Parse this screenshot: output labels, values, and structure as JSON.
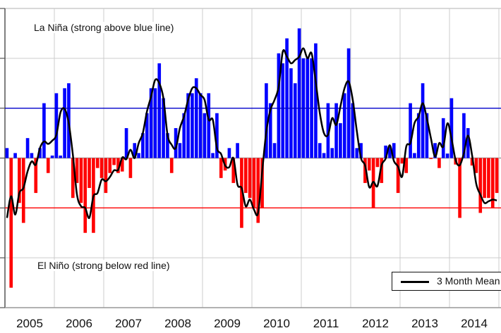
{
  "chart_data": {
    "type": "bar",
    "title": "",
    "xlabel": "",
    "ylabel": "",
    "ylim": [
      -30,
      30
    ],
    "yticks": [
      -30,
      -20,
      -10,
      0,
      10,
      20,
      30
    ],
    "grid": true,
    "years": [
      "2005",
      "2006",
      "2007",
      "2008",
      "2009",
      "2010",
      "2011",
      "2012",
      "2013",
      "2014"
    ],
    "monthly_values": [
      [
        2,
        -26,
        1,
        -9,
        -13,
        4,
        1,
        -7,
        2,
        11,
        -3,
        0.5
      ],
      [
        13,
        0.5,
        14,
        15,
        -8,
        -5,
        -9,
        -15,
        -6,
        -15,
        -2,
        -4
      ],
      [
        -7,
        -3,
        -1.4,
        -3,
        -2.7,
        6,
        -4,
        3,
        1,
        5,
        9,
        14
      ],
      [
        14,
        19,
        12,
        5,
        -3,
        6,
        3,
        9,
        13,
        13,
        16,
        13
      ],
      [
        9,
        13,
        1,
        9,
        -4,
        -2.5,
        2,
        -5,
        3,
        -14,
        -7,
        -8
      ],
      [
        -10,
        -13,
        -10,
        15,
        11,
        3,
        21,
        19,
        24,
        18,
        15,
        26
      ],
      [
        20,
        20,
        20,
        23,
        3,
        1,
        11,
        2,
        11,
        7,
        13,
        22
      ],
      [
        11,
        2,
        3,
        -5,
        -2.5,
        -10,
        -1.8,
        -5,
        2.5,
        2.2,
        3,
        -7
      ],
      [
        -1.1,
        -3,
        11,
        1,
        9,
        15,
        9,
        -0.2,
        3,
        -2,
        8,
        0.9
      ],
      [
        12,
        -1.3,
        -12,
        9,
        6,
        -1.5,
        -3,
        -11,
        -8,
        -8,
        -10,
        -7
      ]
    ],
    "positive_color": "#0000ff",
    "negative_color": "#ff0000",
    "thresholds": [
      {
        "value": 10,
        "color": "#0000cc"
      },
      {
        "value": -10,
        "color": "#ff0000"
      }
    ],
    "mean_series": {
      "name": "3 Month Mean",
      "window": 3,
      "color": "#000000"
    },
    "annotations": {
      "la_nina": "La Niña (strong above blue line)",
      "el_nino": "El Niño (strong below red line)"
    },
    "legend": {
      "label": "3 Month Mean",
      "placement": "bottom-right"
    }
  }
}
